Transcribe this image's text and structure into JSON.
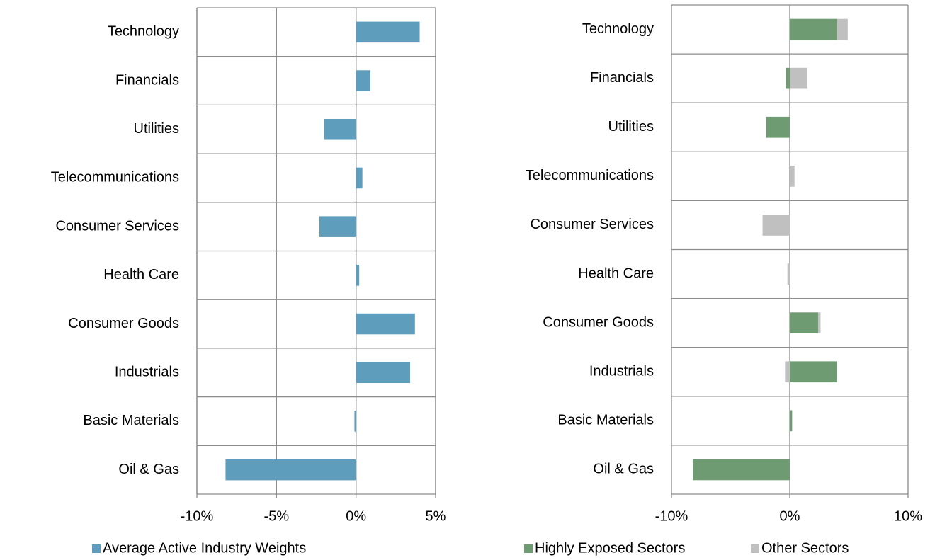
{
  "chart_data": [
    {
      "type": "bar",
      "orientation": "horizontal",
      "categories": [
        "Technology",
        "Financials",
        "Utilities",
        "Telecommunications",
        "Consumer Services",
        "Health Care",
        "Consumer Goods",
        "Industrials",
        "Basic Materials",
        "Oil & Gas"
      ],
      "series": [
        {
          "name": "Average Active Industry Weights",
          "color": "#5f9dbd",
          "values": [
            4.0,
            0.9,
            -2.0,
            0.4,
            -2.3,
            0.2,
            3.7,
            3.4,
            -0.1,
            -8.2
          ]
        }
      ],
      "xlim": [
        -10,
        5
      ],
      "xticks": [
        {
          "value": -10,
          "label": "-10%"
        },
        {
          "value": -5,
          "label": "-5%"
        },
        {
          "value": 0,
          "label": "0%"
        },
        {
          "value": 5,
          "label": "5%"
        }
      ],
      "grid": true,
      "legend": "bottom"
    },
    {
      "type": "bar",
      "orientation": "horizontal",
      "stacked": true,
      "categories": [
        "Technology",
        "Financials",
        "Utilities",
        "Telecommunications",
        "Consumer Services",
        "Health Care",
        "Consumer Goods",
        "Industrials",
        "Basic Materials",
        "Oil & Gas"
      ],
      "series": [
        {
          "name": "Highly Exposed  Sectors",
          "color": "#6f9b73",
          "values": [
            4.0,
            -0.3,
            -2.0,
            0,
            0,
            0,
            2.4,
            4.0,
            0.2,
            -8.2
          ]
        },
        {
          "name": "Other Sectors",
          "color": "#c0c0c0",
          "values": [
            0.9,
            1.5,
            0,
            0.4,
            -2.3,
            -0.2,
            0.2,
            -0.4,
            0,
            0
          ]
        }
      ],
      "xlim": [
        -10,
        10
      ],
      "xticks": [
        {
          "value": -10,
          "label": "-10%"
        },
        {
          "value": 0,
          "label": "0%"
        },
        {
          "value": 10,
          "label": "10%"
        }
      ],
      "grid": false,
      "legend": "bottom"
    }
  ]
}
